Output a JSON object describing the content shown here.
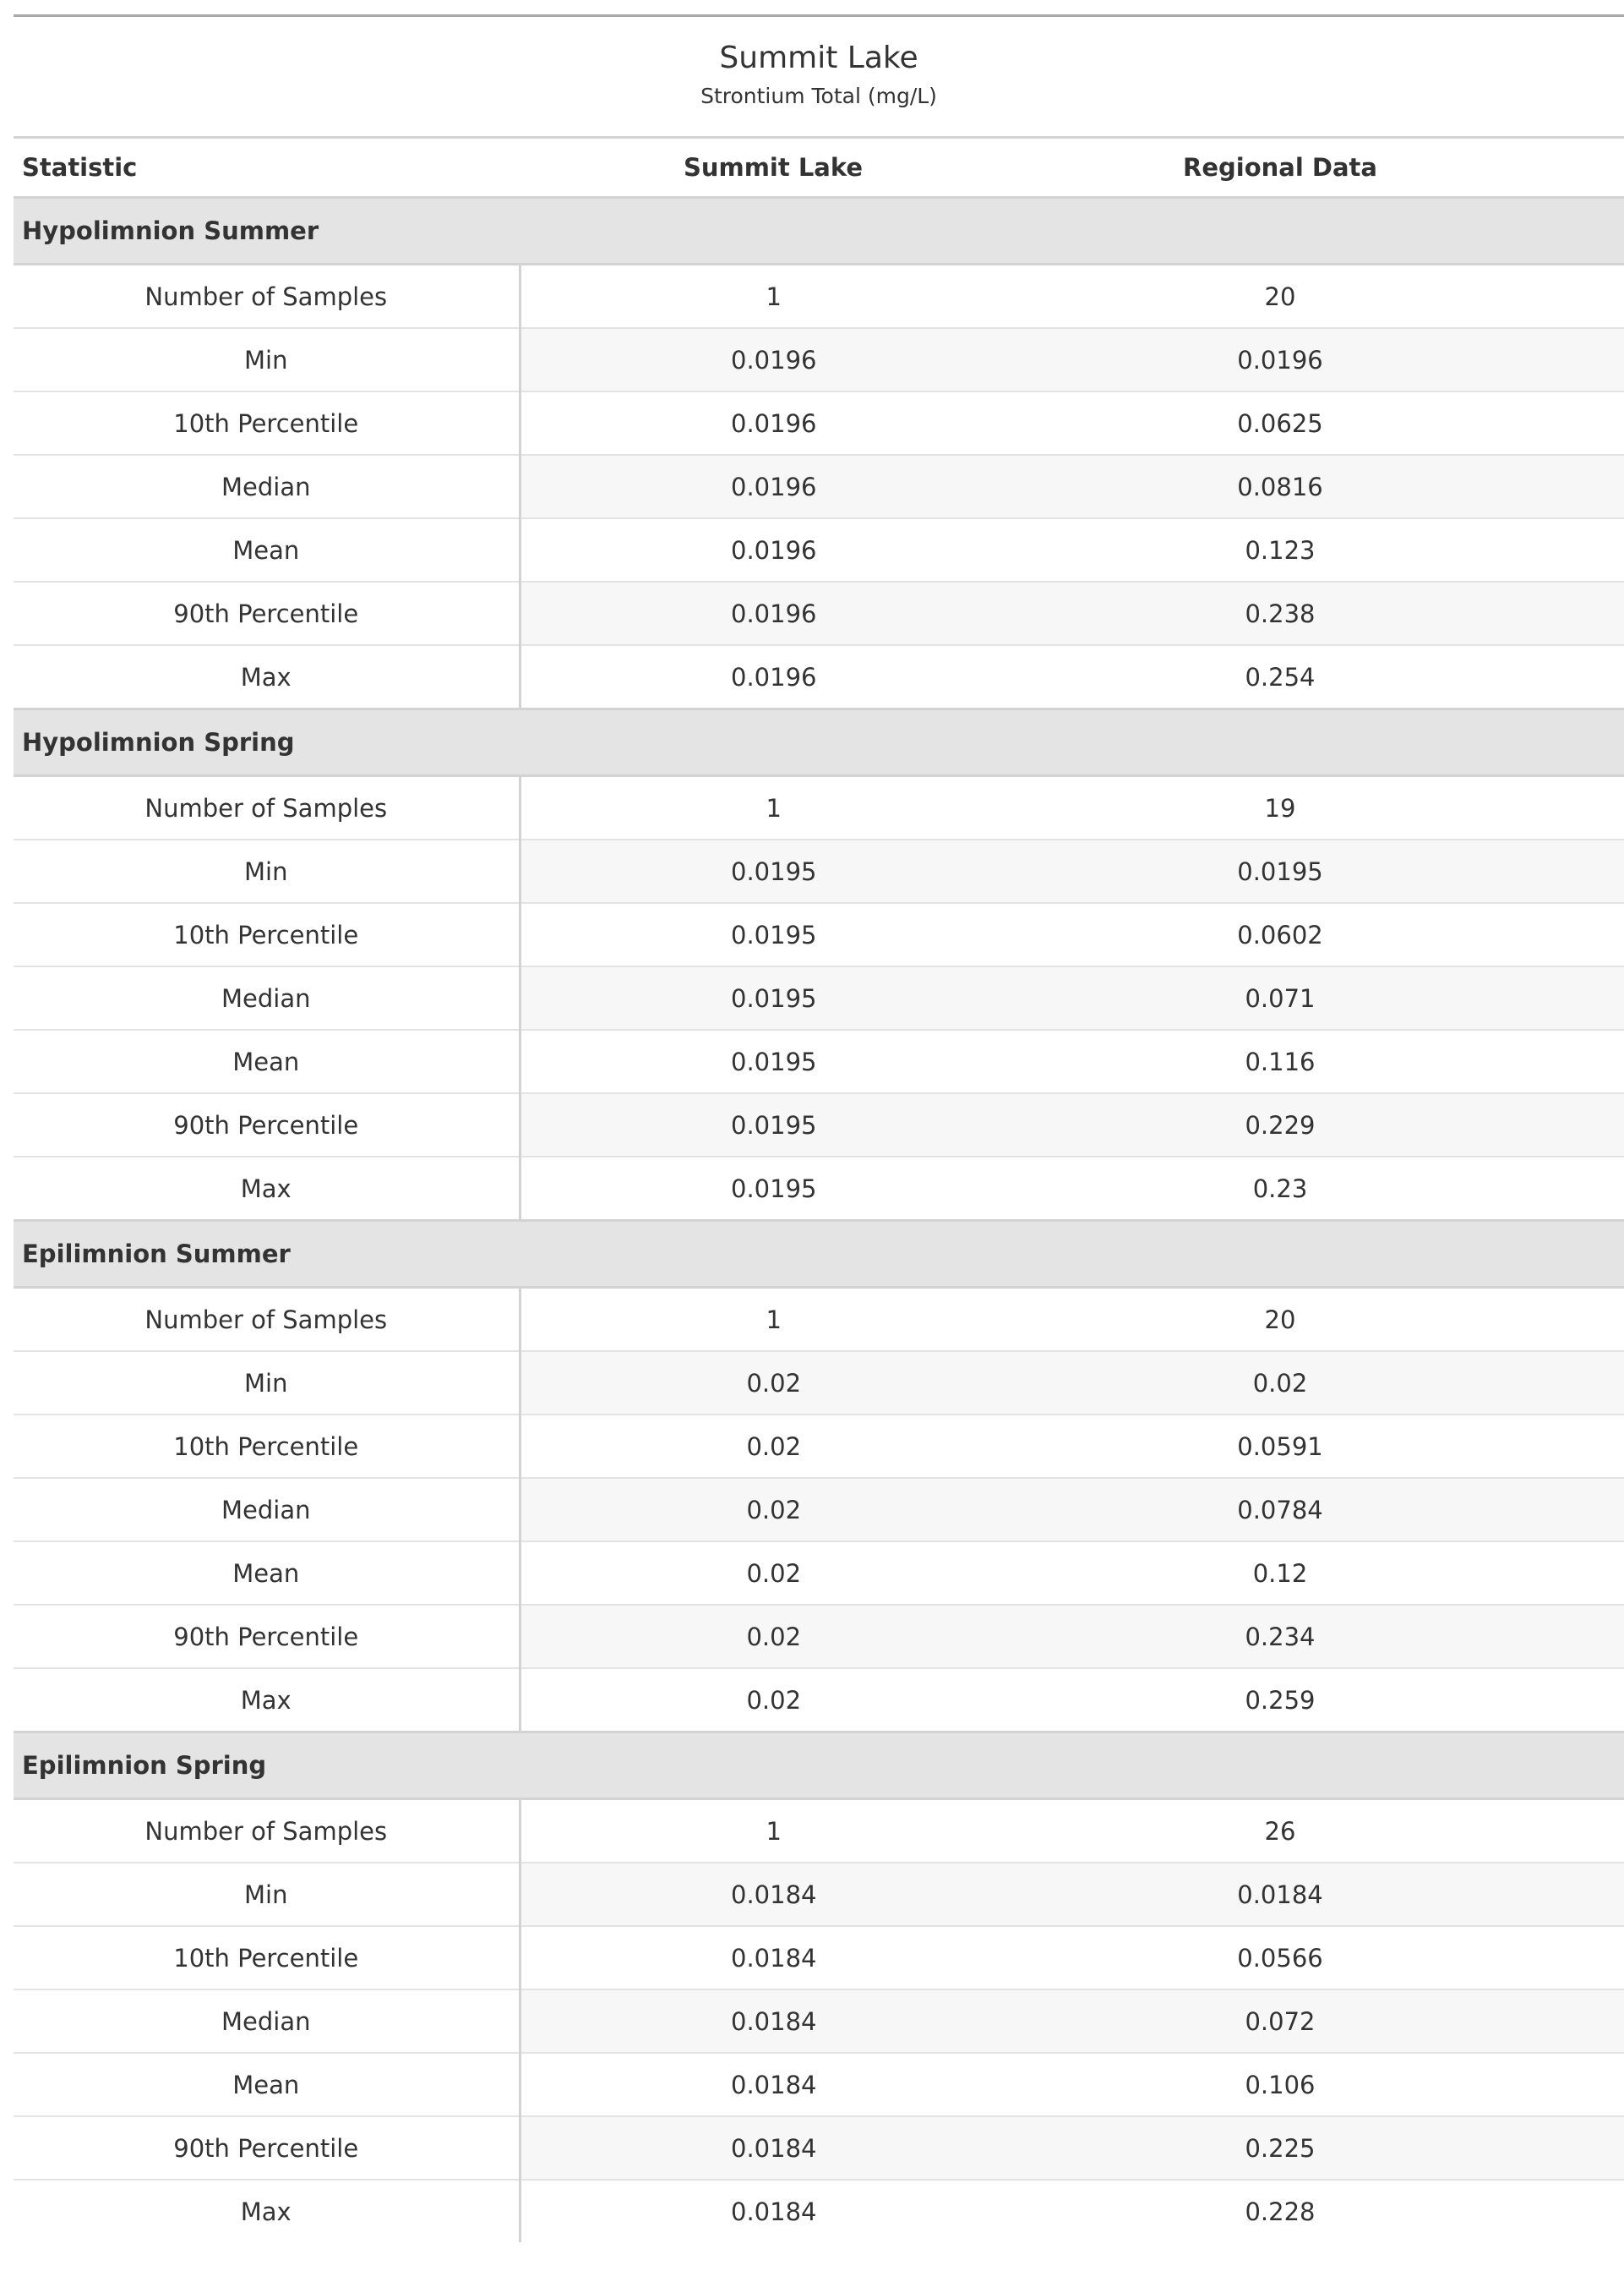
{
  "header": {
    "title": "Summit Lake",
    "subtitle": "Strontium Total (mg/L)"
  },
  "columns": {
    "statistic": "Statistic",
    "summit": "Summit Lake",
    "regional": "Regional Data"
  },
  "groups": [
    {
      "name": "Hypolimnion Summer",
      "rows": [
        {
          "stat": "Number of Samples",
          "summit": "1",
          "regional": "20"
        },
        {
          "stat": "Min",
          "summit": "0.0196",
          "regional": "0.0196"
        },
        {
          "stat": "10th Percentile",
          "summit": "0.0196",
          "regional": "0.0625"
        },
        {
          "stat": "Median",
          "summit": "0.0196",
          "regional": "0.0816"
        },
        {
          "stat": "Mean",
          "summit": "0.0196",
          "regional": "0.123"
        },
        {
          "stat": "90th Percentile",
          "summit": "0.0196",
          "regional": "0.238"
        },
        {
          "stat": "Max",
          "summit": "0.0196",
          "regional": "0.254"
        }
      ]
    },
    {
      "name": "Hypolimnion Spring",
      "rows": [
        {
          "stat": "Number of Samples",
          "summit": "1",
          "regional": "19"
        },
        {
          "stat": "Min",
          "summit": "0.0195",
          "regional": "0.0195"
        },
        {
          "stat": "10th Percentile",
          "summit": "0.0195",
          "regional": "0.0602"
        },
        {
          "stat": "Median",
          "summit": "0.0195",
          "regional": "0.071"
        },
        {
          "stat": "Mean",
          "summit": "0.0195",
          "regional": "0.116"
        },
        {
          "stat": "90th Percentile",
          "summit": "0.0195",
          "regional": "0.229"
        },
        {
          "stat": "Max",
          "summit": "0.0195",
          "regional": "0.23"
        }
      ]
    },
    {
      "name": "Epilimnion Summer",
      "rows": [
        {
          "stat": "Number of Samples",
          "summit": "1",
          "regional": "20"
        },
        {
          "stat": "Min",
          "summit": "0.02",
          "regional": "0.02"
        },
        {
          "stat": "10th Percentile",
          "summit": "0.02",
          "regional": "0.0591"
        },
        {
          "stat": "Median",
          "summit": "0.02",
          "regional": "0.0784"
        },
        {
          "stat": "Mean",
          "summit": "0.02",
          "regional": "0.12"
        },
        {
          "stat": "90th Percentile",
          "summit": "0.02",
          "regional": "0.234"
        },
        {
          "stat": "Max",
          "summit": "0.02",
          "regional": "0.259"
        }
      ]
    },
    {
      "name": "Epilimnion Spring",
      "rows": [
        {
          "stat": "Number of Samples",
          "summit": "1",
          "regional": "26"
        },
        {
          "stat": "Min",
          "summit": "0.0184",
          "regional": "0.0184"
        },
        {
          "stat": "10th Percentile",
          "summit": "0.0184",
          "regional": "0.0566"
        },
        {
          "stat": "Median",
          "summit": "0.0184",
          "regional": "0.072"
        },
        {
          "stat": "Mean",
          "summit": "0.0184",
          "regional": "0.106"
        },
        {
          "stat": "90th Percentile",
          "summit": "0.0184",
          "regional": "0.225"
        },
        {
          "stat": "Max",
          "summit": "0.0184",
          "regional": "0.228"
        }
      ]
    }
  ]
}
